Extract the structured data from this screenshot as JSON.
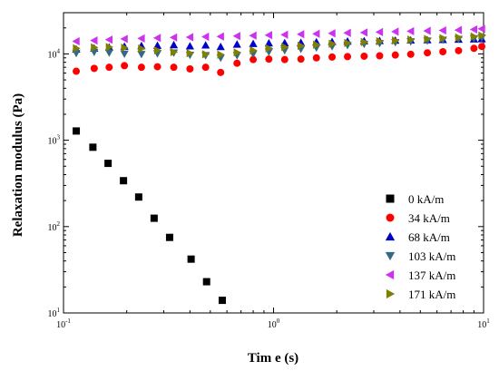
{
  "chart_data": {
    "type": "scatter",
    "xlabel": "Tim e (s)",
    "ylabel": "Relaxation modulus (Pa)",
    "xscale": "log",
    "yscale": "log",
    "xlim": [
      0.1,
      10
    ],
    "ylim": [
      10,
      30000
    ],
    "x_ticks": [
      {
        "value": 0.1,
        "base": "10",
        "exp": "-1"
      },
      {
        "value": 1,
        "base": "10",
        "exp": "0"
      },
      {
        "value": 10,
        "base": "10",
        "exp": "1"
      }
    ],
    "y_ticks": [
      {
        "value": 10,
        "base": "10",
        "exp": "1"
      },
      {
        "value": 100,
        "base": "10",
        "exp": "2"
      },
      {
        "value": 1000,
        "base": "10",
        "exp": "3"
      },
      {
        "value": 10000,
        "base": "10",
        "exp": "4"
      }
    ],
    "legend_position": "bottom-right",
    "series": [
      {
        "name": "0 kA/m",
        "marker": "square",
        "color": "#000000",
        "x": [
          0.115,
          0.138,
          0.163,
          0.193,
          0.228,
          0.27,
          0.32,
          0.405,
          0.48,
          0.57
        ],
        "y": [
          1280,
          830,
          540,
          340,
          220,
          125,
          75,
          42,
          23,
          14
        ]
      },
      {
        "name": "34 kA/m",
        "marker": "circle",
        "color": "#ff0000",
        "x": [
          0.115,
          0.14,
          0.165,
          0.195,
          0.235,
          0.28,
          0.335,
          0.4,
          0.475,
          0.56,
          0.67,
          0.8,
          0.95,
          1.13,
          1.35,
          1.6,
          1.9,
          2.25,
          2.7,
          3.2,
          3.8,
          4.5,
          5.4,
          6.4,
          7.6,
          9.0,
          10
        ],
        "y": [
          6300,
          6800,
          7000,
          7300,
          7000,
          7100,
          7000,
          6700,
          7000,
          6100,
          7800,
          8600,
          8700,
          8600,
          8700,
          9000,
          9200,
          9300,
          9400,
          9500,
          9700,
          9900,
          10300,
          10600,
          10900,
          11600,
          12200
        ]
      },
      {
        "name": "68 kA/m",
        "marker": "triangle-up",
        "color": "#0000cc",
        "x": [
          0.115,
          0.14,
          0.165,
          0.195,
          0.235,
          0.28,
          0.335,
          0.4,
          0.475,
          0.56,
          0.67,
          0.8,
          0.95,
          1.13,
          1.35,
          1.6,
          1.9,
          2.25,
          2.7,
          3.2,
          3.8,
          4.5,
          5.4,
          6.4,
          7.6,
          9.0,
          10
        ],
        "y": [
          11300,
          11600,
          11900,
          12200,
          12400,
          12500,
          12700,
          12300,
          12600,
          12100,
          12900,
          13100,
          13300,
          13400,
          13500,
          13700,
          13800,
          14000,
          14100,
          14200,
          14300,
          14400,
          14500,
          14600,
          14700,
          14800,
          14900
        ]
      },
      {
        "name": "103 kA/m",
        "marker": "triangle-down",
        "color": "#336a80",
        "x": [
          0.115,
          0.14,
          0.165,
          0.195,
          0.235,
          0.28,
          0.335,
          0.4,
          0.475,
          0.56,
          0.67,
          0.8,
          0.95,
          1.13,
          1.35,
          1.6,
          1.9,
          2.25,
          2.7,
          3.2,
          3.8,
          4.5,
          5.4,
          6.4,
          7.6,
          9.0,
          10
        ],
        "y": [
          10200,
          10500,
          10300,
          10000,
          9900,
          10100,
          10300,
          9700,
          9600,
          9000,
          9600,
          10000,
          10600,
          11000,
          11400,
          11800,
          12200,
          12600,
          13000,
          13300,
          13600,
          13900,
          14200,
          14500,
          14800,
          15100,
          15400
        ]
      },
      {
        "name": "137 kA/m",
        "marker": "triangle-left",
        "color": "#cc33ee",
        "x": [
          0.115,
          0.14,
          0.165,
          0.195,
          0.235,
          0.28,
          0.335,
          0.4,
          0.475,
          0.56,
          0.67,
          0.8,
          0.95,
          1.13,
          1.35,
          1.6,
          1.9,
          2.25,
          2.7,
          3.2,
          3.8,
          4.5,
          5.4,
          6.4,
          7.6,
          9.0,
          10
        ],
        "y": [
          14000,
          14300,
          14600,
          14900,
          15100,
          15300,
          15500,
          15600,
          15800,
          15900,
          16100,
          16300,
          16500,
          16700,
          16900,
          17100,
          17300,
          17500,
          17700,
          17900,
          18100,
          18300,
          18500,
          18700,
          18900,
          19200,
          19500
        ]
      },
      {
        "name": "171 kA/m",
        "marker": "triangle-right",
        "color": "#808000",
        "x": [
          0.115,
          0.14,
          0.165,
          0.195,
          0.235,
          0.28,
          0.335,
          0.4,
          0.475,
          0.56,
          0.67,
          0.8,
          0.95,
          1.13,
          1.35,
          1.6,
          1.9,
          2.25,
          2.7,
          3.2,
          3.8,
          4.5,
          5.4,
          6.4,
          7.6,
          9.0,
          10
        ],
        "y": [
          11600,
          11900,
          12000,
          11800,
          11500,
          11000,
          10500,
          10200,
          9900,
          9800,
          10400,
          11000,
          11600,
          12000,
          12400,
          12800,
          13100,
          13400,
          13700,
          14000,
          14300,
          14600,
          14900,
          15200,
          15500,
          15900,
          16300
        ]
      }
    ]
  }
}
